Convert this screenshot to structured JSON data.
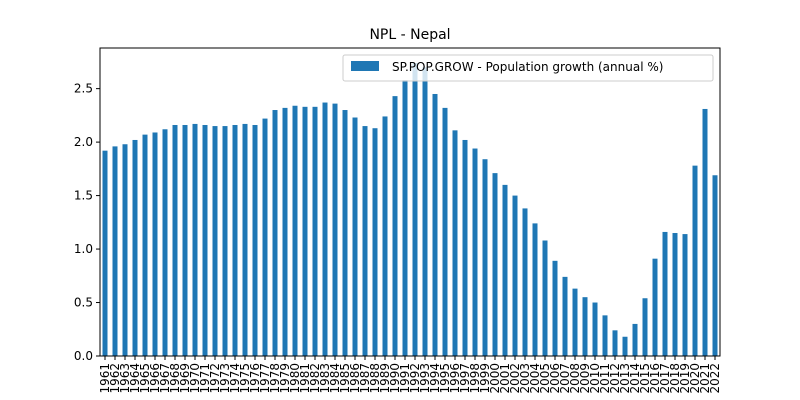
{
  "chart_data": {
    "type": "bar",
    "title": "NPL - Nepal",
    "xlabel": "",
    "ylabel": "",
    "ylim": [
      0,
      2.88
    ],
    "yticks": [
      0.0,
      0.5,
      1.0,
      1.5,
      2.0,
      2.5
    ],
    "ytick_labels": [
      "0.0",
      "0.5",
      "1.0",
      "1.5",
      "2.0",
      "2.5"
    ],
    "grid": false,
    "legend_position": "top-right",
    "bar_color": "#1f77b4",
    "categories": [
      "1961",
      "1962",
      "1963",
      "1964",
      "1965",
      "1966",
      "1967",
      "1968",
      "1969",
      "1970",
      "1971",
      "1972",
      "1973",
      "1974",
      "1975",
      "1976",
      "1977",
      "1978",
      "1979",
      "1980",
      "1981",
      "1982",
      "1983",
      "1984",
      "1985",
      "1986",
      "1987",
      "1988",
      "1989",
      "1990",
      "1991",
      "1992",
      "1993",
      "1994",
      "1995",
      "1996",
      "1997",
      "1998",
      "1999",
      "2000",
      "2001",
      "2002",
      "2003",
      "2004",
      "2005",
      "2006",
      "2007",
      "2008",
      "2009",
      "2010",
      "2011",
      "2012",
      "2013",
      "2014",
      "2015",
      "2016",
      "2017",
      "2018",
      "2019",
      "2020",
      "2021",
      "2022"
    ],
    "series": [
      {
        "name": "SP.POP.GROW - Population growth (annual %)",
        "values": [
          1.92,
          1.96,
          1.98,
          2.02,
          2.07,
          2.09,
          2.12,
          2.16,
          2.16,
          2.17,
          2.16,
          2.15,
          2.15,
          2.16,
          2.17,
          2.16,
          2.22,
          2.3,
          2.32,
          2.34,
          2.33,
          2.33,
          2.37,
          2.36,
          2.3,
          2.23,
          2.15,
          2.13,
          2.24,
          2.43,
          2.58,
          2.74,
          2.7,
          2.45,
          2.32,
          2.11,
          2.02,
          1.94,
          1.84,
          1.71,
          1.6,
          1.5,
          1.38,
          1.24,
          1.08,
          0.89,
          0.74,
          0.63,
          0.55,
          0.5,
          0.38,
          0.24,
          0.18,
          0.3,
          0.54,
          0.91,
          1.16,
          1.15,
          1.14,
          1.78,
          2.31,
          1.69
        ]
      }
    ]
  }
}
